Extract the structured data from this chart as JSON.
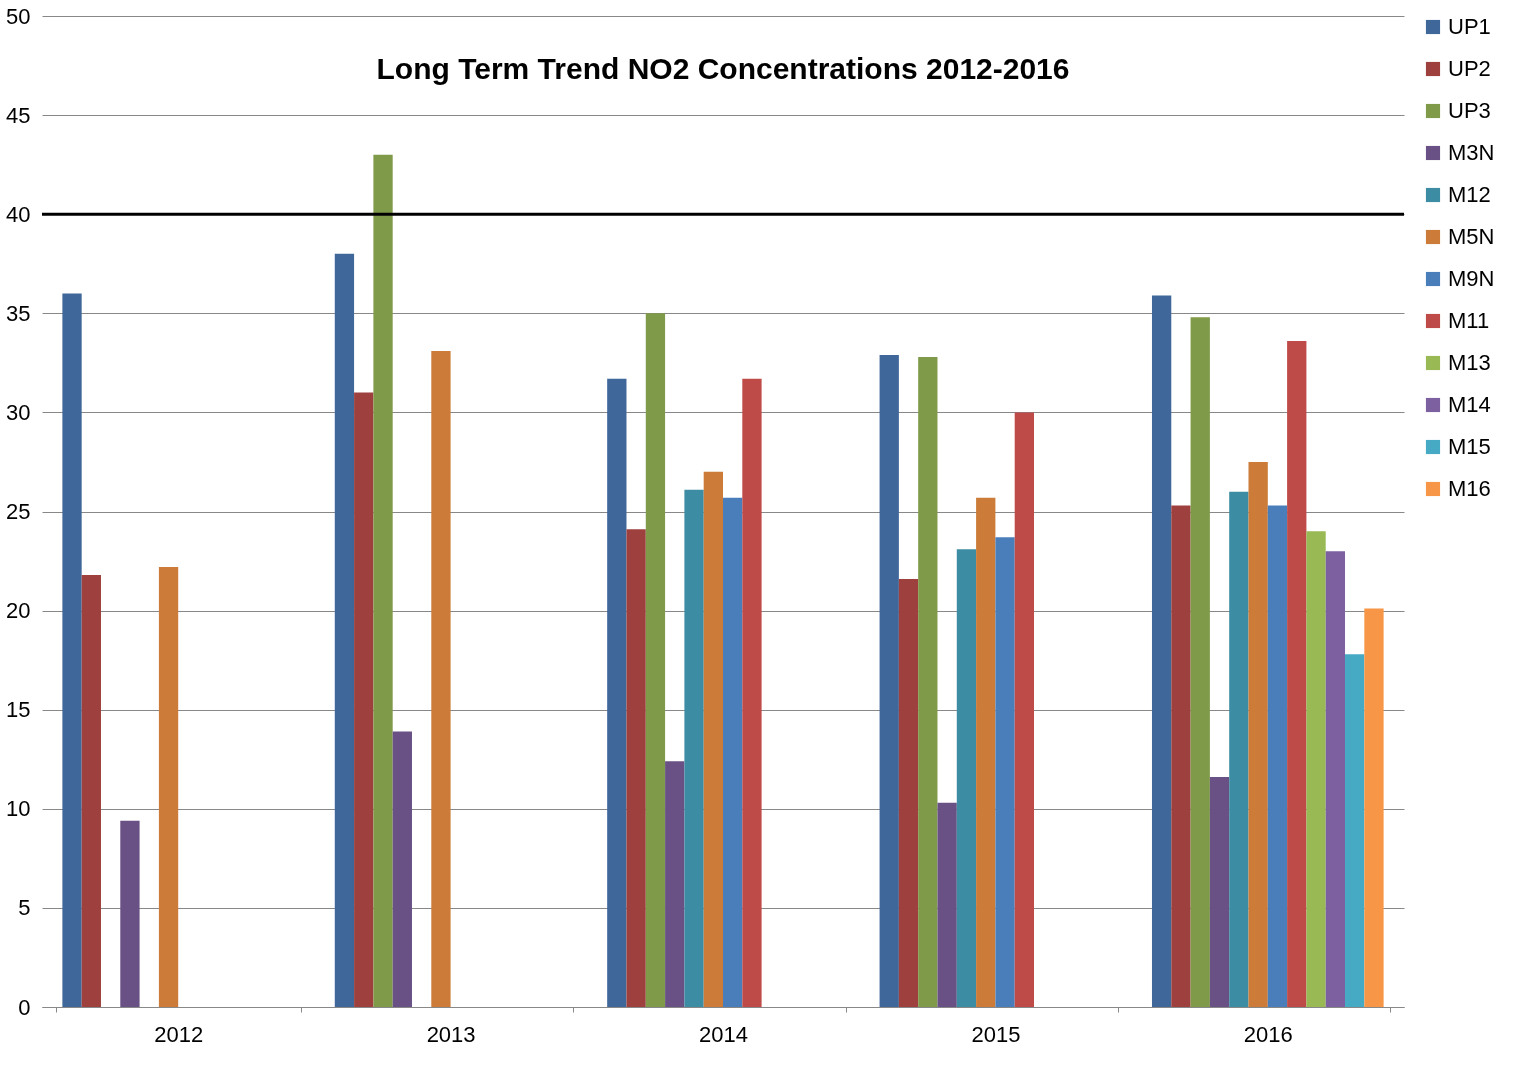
{
  "chart_data": {
    "type": "bar",
    "title": "Long Term Trend NO2 Concentrations 2012-2016",
    "categories": [
      "2012",
      "2013",
      "2014",
      "2015",
      "2016"
    ],
    "series": [
      {
        "name": "UP1",
        "color": "#3f679a",
        "values": [
          36.0,
          38.0,
          31.7,
          32.9,
          35.9
        ]
      },
      {
        "name": "UP2",
        "color": "#9e413e",
        "values": [
          21.8,
          31.0,
          24.1,
          21.6,
          25.3
        ]
      },
      {
        "name": "UP3",
        "color": "#7f9a48",
        "values": [
          null,
          43.0,
          35.0,
          32.8,
          34.8
        ]
      },
      {
        "name": "M3N",
        "color": "#695185",
        "values": [
          9.4,
          13.9,
          12.4,
          10.3,
          11.6
        ]
      },
      {
        "name": "M12",
        "color": "#3c8da3",
        "values": [
          null,
          null,
          26.1,
          23.1,
          26.0
        ]
      },
      {
        "name": "M5N",
        "color": "#cc7b38",
        "values": [
          22.2,
          33.1,
          27.0,
          25.7,
          27.5
        ]
      },
      {
        "name": "M9N",
        "color": "#4a7ebb",
        "values": [
          null,
          null,
          25.7,
          23.7,
          25.3
        ]
      },
      {
        "name": "M11",
        "color": "#be4b48",
        "values": [
          null,
          null,
          31.7,
          30.0,
          33.6
        ]
      },
      {
        "name": "M13",
        "color": "#98b954",
        "values": [
          null,
          null,
          null,
          null,
          24.0
        ]
      },
      {
        "name": "M14",
        "color": "#7d60a0",
        "values": [
          null,
          null,
          null,
          null,
          23.0
        ]
      },
      {
        "name": "M15",
        "color": "#46aac5",
        "values": [
          null,
          null,
          null,
          null,
          17.8
        ]
      },
      {
        "name": "M16",
        "color": "#f79646",
        "values": [
          null,
          null,
          null,
          null,
          20.1
        ]
      }
    ],
    "ylim": [
      0,
      50
    ],
    "yticks": [
      0,
      5,
      10,
      15,
      20,
      25,
      30,
      35,
      40,
      45,
      50
    ],
    "ref_lines": [
      {
        "axis": "y",
        "value": 40,
        "color": "#000000",
        "line_style": "solid"
      }
    ],
    "grid": "y",
    "legend": "right"
  }
}
